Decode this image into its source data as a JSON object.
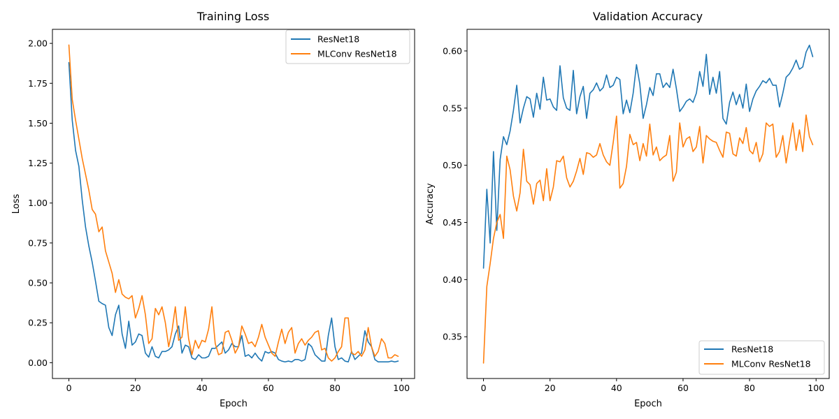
{
  "chart_data": [
    {
      "type": "line",
      "title": "Training Loss",
      "xlabel": "Epoch",
      "ylabel": "Loss",
      "xlim": [
        -4.95,
        103.95
      ],
      "ylim": [
        -0.099,
        2.088
      ],
      "xticks": [
        0,
        20,
        40,
        60,
        80,
        100
      ],
      "xtick_labels": [
        "0",
        "20",
        "40",
        "60",
        "80",
        "100"
      ],
      "yticks": [
        0,
        0.25,
        0.5,
        0.75,
        1.0,
        1.25,
        1.5,
        1.75,
        2.0
      ],
      "ytick_labels": [
        "0.00",
        "0.25",
        "0.50",
        "0.75",
        "1.00",
        "1.25",
        "1.50",
        "1.75",
        "2.00"
      ],
      "grid": false,
      "legend": "upper right",
      "series": [
        {
          "name": "ResNet18",
          "color": "#1f77b4",
          "values": [
            1.88,
            1.52,
            1.33,
            1.23,
            1.02,
            0.85,
            0.73,
            0.63,
            0.51,
            0.385,
            0.37,
            0.36,
            0.22,
            0.17,
            0.3,
            0.36,
            0.18,
            0.09,
            0.26,
            0.11,
            0.13,
            0.18,
            0.17,
            0.06,
            0.035,
            0.1,
            0.04,
            0.03,
            0.07,
            0.07,
            0.08,
            0.1,
            0.18,
            0.23,
            0.06,
            0.11,
            0.1,
            0.03,
            0.02,
            0.05,
            0.03,
            0.03,
            0.04,
            0.09,
            0.09,
            0.11,
            0.13,
            0.06,
            0.08,
            0.12,
            0.1,
            0.1,
            0.17,
            0.04,
            0.05,
            0.03,
            0.06,
            0.03,
            0.01,
            0.07,
            0.06,
            0.07,
            0.06,
            0.02,
            0.01,
            0.005,
            0.01,
            0.005,
            0.02,
            0.02,
            0.01,
            0.02,
            0.12,
            0.1,
            0.05,
            0.03,
            0.01,
            0.01,
            0.17,
            0.28,
            0.1,
            0.02,
            0.03,
            0.01,
            0.005,
            0.07,
            0.02,
            0.04,
            0.06,
            0.2,
            0.13,
            0.1,
            0.02,
            0.005,
            0.005,
            0.005,
            0.005,
            0.01,
            0.005,
            0.01
          ]
        },
        {
          "name": "MLConv ResNet18",
          "color": "#ff7f0e",
          "values": [
            1.99,
            1.65,
            1.52,
            1.4,
            1.28,
            1.18,
            1.08,
            0.96,
            0.93,
            0.82,
            0.85,
            0.7,
            0.63,
            0.56,
            0.44,
            0.52,
            0.43,
            0.41,
            0.4,
            0.42,
            0.28,
            0.34,
            0.42,
            0.3,
            0.12,
            0.15,
            0.34,
            0.3,
            0.35,
            0.25,
            0.1,
            0.2,
            0.35,
            0.14,
            0.16,
            0.35,
            0.15,
            0.05,
            0.14,
            0.09,
            0.14,
            0.13,
            0.21,
            0.35,
            0.12,
            0.05,
            0.06,
            0.19,
            0.2,
            0.14,
            0.06,
            0.1,
            0.23,
            0.18,
            0.12,
            0.13,
            0.1,
            0.16,
            0.24,
            0.16,
            0.11,
            0.06,
            0.04,
            0.13,
            0.21,
            0.12,
            0.19,
            0.22,
            0.06,
            0.12,
            0.15,
            0.11,
            0.14,
            0.16,
            0.19,
            0.2,
            0.08,
            0.09,
            0.03,
            0.01,
            0.03,
            0.07,
            0.1,
            0.28,
            0.28,
            0.06,
            0.05,
            0.07,
            0.04,
            0.08,
            0.22,
            0.1,
            0.04,
            0.07,
            0.15,
            0.12,
            0.03,
            0.03,
            0.05,
            0.04
          ]
        }
      ]
    },
    {
      "type": "line",
      "title": "Validation Accuracy",
      "xlabel": "Epoch",
      "ylabel": "Accuracy",
      "xlim": [
        -4.95,
        103.95
      ],
      "ylim": [
        0.3135,
        0.6189
      ],
      "xticks": [
        0,
        20,
        40,
        60,
        80,
        100
      ],
      "xtick_labels": [
        "0",
        "20",
        "40",
        "60",
        "80",
        "100"
      ],
      "yticks": [
        0.35,
        0.4,
        0.45,
        0.5,
        0.55,
        0.6
      ],
      "ytick_labels": [
        "0.35",
        "0.40",
        "0.45",
        "0.50",
        "0.55",
        "0.60"
      ],
      "grid": false,
      "legend": "lower right",
      "series": [
        {
          "name": "ResNet18",
          "color": "#1f77b4",
          "values": [
            0.41,
            0.479,
            0.432,
            0.512,
            0.443,
            0.505,
            0.525,
            0.518,
            0.53,
            0.548,
            0.57,
            0.537,
            0.55,
            0.56,
            0.558,
            0.542,
            0.563,
            0.549,
            0.577,
            0.557,
            0.558,
            0.551,
            0.548,
            0.587,
            0.559,
            0.55,
            0.548,
            0.583,
            0.545,
            0.56,
            0.569,
            0.541,
            0.563,
            0.566,
            0.572,
            0.565,
            0.568,
            0.579,
            0.568,
            0.57,
            0.577,
            0.575,
            0.545,
            0.557,
            0.546,
            0.563,
            0.588,
            0.571,
            0.541,
            0.553,
            0.568,
            0.561,
            0.58,
            0.58,
            0.568,
            0.572,
            0.568,
            0.584,
            0.567,
            0.547,
            0.551,
            0.556,
            0.558,
            0.555,
            0.563,
            0.582,
            0.569,
            0.597,
            0.562,
            0.577,
            0.563,
            0.582,
            0.541,
            0.536,
            0.555,
            0.564,
            0.553,
            0.562,
            0.55,
            0.571,
            0.547,
            0.558,
            0.565,
            0.569,
            0.574,
            0.572,
            0.576,
            0.57,
            0.57,
            0.551,
            0.563,
            0.577,
            0.58,
            0.585,
            0.592,
            0.584,
            0.586,
            0.599,
            0.605,
            0.595
          ]
        },
        {
          "name": "MLConv ResNet18",
          "color": "#ff7f0e",
          "values": [
            0.327,
            0.394,
            0.414,
            0.436,
            0.45,
            0.457,
            0.436,
            0.508,
            0.496,
            0.473,
            0.46,
            0.476,
            0.514,
            0.486,
            0.483,
            0.466,
            0.484,
            0.487,
            0.469,
            0.497,
            0.469,
            0.481,
            0.504,
            0.503,
            0.508,
            0.489,
            0.481,
            0.486,
            0.495,
            0.506,
            0.492,
            0.511,
            0.51,
            0.507,
            0.509,
            0.519,
            0.509,
            0.503,
            0.5,
            0.52,
            0.543,
            0.48,
            0.484,
            0.499,
            0.527,
            0.518,
            0.52,
            0.504,
            0.519,
            0.508,
            0.536,
            0.509,
            0.516,
            0.504,
            0.507,
            0.509,
            0.526,
            0.486,
            0.494,
            0.537,
            0.516,
            0.523,
            0.525,
            0.512,
            0.516,
            0.534,
            0.502,
            0.526,
            0.523,
            0.521,
            0.52,
            0.513,
            0.507,
            0.529,
            0.528,
            0.51,
            0.508,
            0.524,
            0.519,
            0.533,
            0.513,
            0.51,
            0.52,
            0.503,
            0.51,
            0.537,
            0.534,
            0.536,
            0.507,
            0.512,
            0.526,
            0.502,
            0.52,
            0.537,
            0.513,
            0.531,
            0.512,
            0.544,
            0.525,
            0.518
          ]
        }
      ]
    }
  ]
}
